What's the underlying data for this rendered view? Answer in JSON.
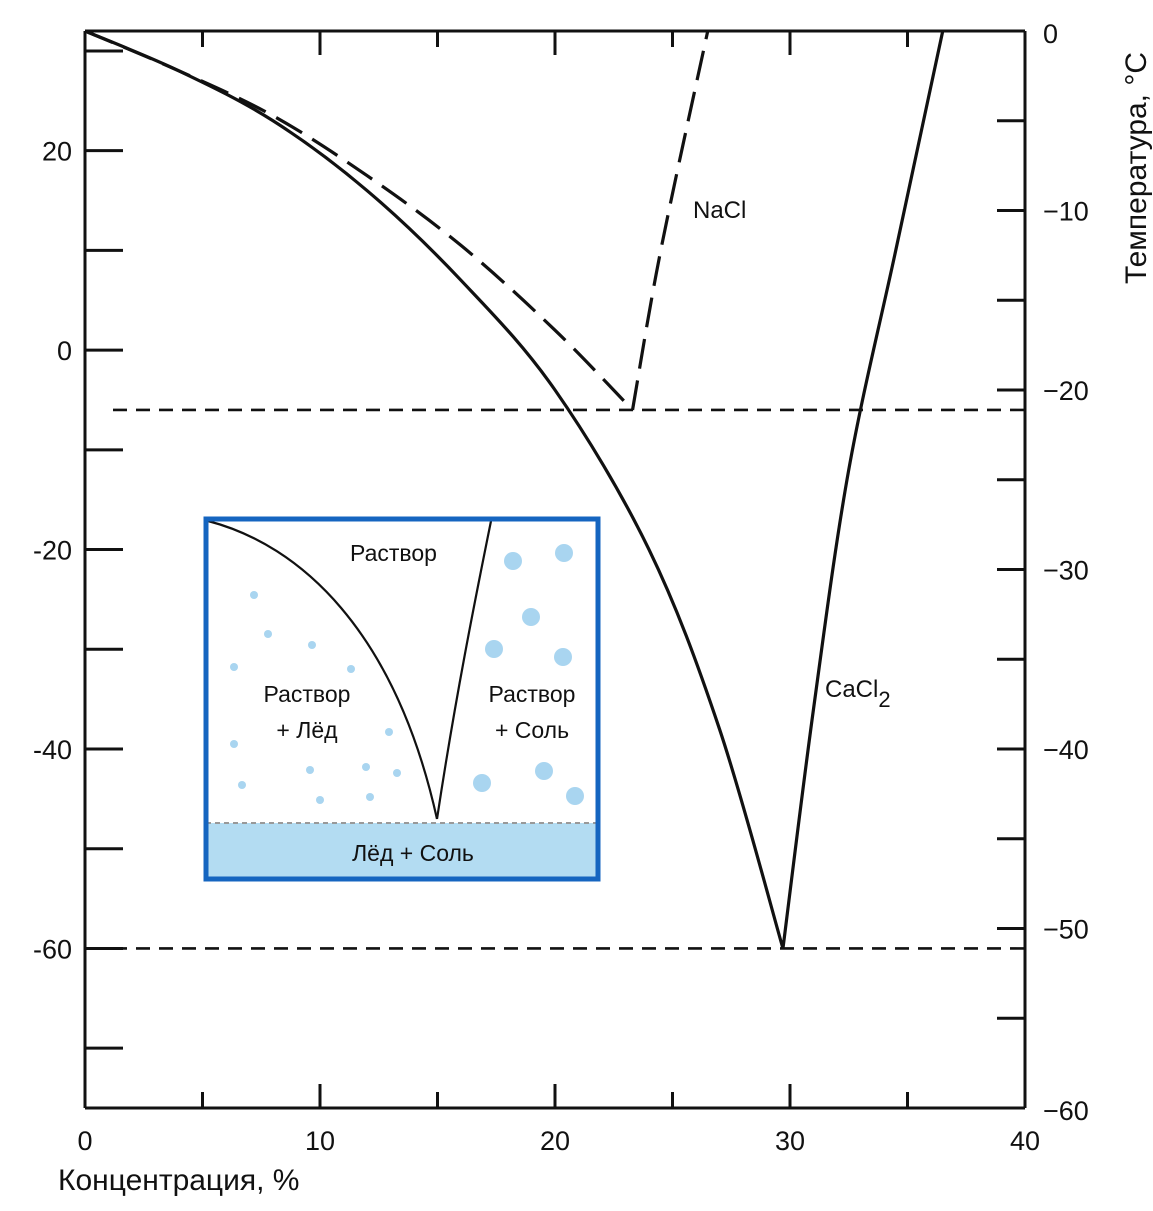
{
  "chart_data": {
    "type": "line",
    "title": "",
    "xlabel": "Концентрация, %",
    "ylabel_right": "Температура, °C",
    "xlim": [
      0,
      40
    ],
    "ylim_left": [
      -76,
      32
    ],
    "ylim_right": [
      -60,
      0
    ],
    "x_ticks": [
      0,
      10,
      20,
      30,
      40
    ],
    "x_tick_labels": [
      "0",
      "10",
      "20",
      "30",
      "40"
    ],
    "y_left_ticks": [
      20,
      0,
      -20,
      -40,
      -60
    ],
    "y_left_tick_labels": [
      "20",
      "0",
      "-20",
      "-40",
      "-60"
    ],
    "y_right_ticks": [
      0,
      -10,
      -20,
      -30,
      -40,
      -50,
      -60
    ],
    "y_right_tick_labels": [
      "0",
      "−10",
      "−20",
      "−30",
      "−40",
      "−50",
      "−60"
    ],
    "grid": false,
    "series": [
      {
        "name": "NaCl",
        "style": "dashed",
        "axis": "left",
        "x": [
          0,
          4,
          8,
          12,
          16,
          20,
          23.3,
          24.5,
          26.5
        ],
        "y": [
          32,
          28,
          23.5,
          17.5,
          10.5,
          2,
          -6,
          10,
          32
        ]
      },
      {
        "name": "CaCl2",
        "style": "solid",
        "axis": "left",
        "x": [
          0,
          4,
          8,
          12,
          16,
          20,
          24,
          27,
          29.7,
          31,
          32.5,
          34.5,
          36.5
        ],
        "y": [
          32,
          28,
          23,
          16,
          7,
          -4,
          -20,
          -38,
          -60,
          -36,
          -12,
          10,
          32
        ]
      }
    ],
    "reference_lines": [
      {
        "axis": "left",
        "y": -6,
        "style": "dashed"
      },
      {
        "axis": "left",
        "y": -60,
        "style": "dashed"
      }
    ],
    "annotations": {
      "nacl": "NaCl",
      "cacl2_base": "CaCl",
      "cacl2_sub": "2"
    }
  },
  "inset": {
    "border_color": "#1565c0",
    "fill_color": "#b3dcf2",
    "crystal_color": "#a9d5f0",
    "solution": "Раствор",
    "solution_ice_line1": "Раствор",
    "solution_ice_line2": "+ Лёд",
    "solution_salt_line1": "Раствор",
    "solution_salt_line2": "+ Соль",
    "ice_salt": "Лёд + Соль"
  }
}
